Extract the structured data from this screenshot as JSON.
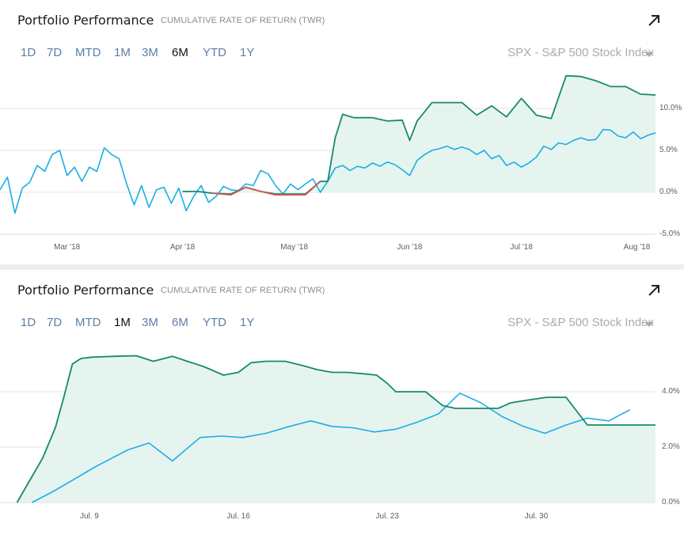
{
  "colors": {
    "portfolio": "#168a6c",
    "portfolio_fill": "#e6f4ef",
    "benchmark": "#1aaee8",
    "negative": "#d9534f",
    "link": "#5b7fa6",
    "muted": "#a7abb0"
  },
  "icons": {
    "expand": "arrow-up-right-icon",
    "dropdown": "caret-down-icon"
  },
  "panels": [
    {
      "title": "Portfolio Performance",
      "subtitle": "CUMULATIVE RATE OF RETURN (TWR)",
      "ranges": [
        "1D",
        "7D",
        "MTD",
        "1M",
        "3M",
        "6M",
        "YTD",
        "1Y"
      ],
      "active_range": "6M",
      "benchmark_label": "SPX - S&P 500 Stock Index"
    },
    {
      "title": "Portfolio Performance",
      "subtitle": "CUMULATIVE RATE OF RETURN (TWR)",
      "ranges": [
        "1D",
        "7D",
        "MTD",
        "1M",
        "3M",
        "6M",
        "YTD",
        "1Y"
      ],
      "active_range": "1M",
      "benchmark_label": "SPX - S&P 500 Stock Index"
    }
  ],
  "chart_data": [
    {
      "type": "area",
      "x_ticks": [
        {
          "label": "Mar '18",
          "t": 18
        },
        {
          "label": "Apr '18",
          "t": 49
        },
        {
          "label": "May '18",
          "t": 79
        },
        {
          "label": "Jun '18",
          "t": 110
        },
        {
          "label": "Jul '18",
          "t": 140
        },
        {
          "label": "Aug '18",
          "t": 171
        }
      ],
      "xlim": [
        0,
        176
      ],
      "y_ticks": [
        "10.0%",
        "5.0%",
        "0.0%",
        "-5.0%"
      ],
      "y_tick_values": [
        10,
        5,
        0,
        -5
      ],
      "ylim": [
        -5,
        14
      ],
      "grid": true,
      "series": [
        {
          "role": "portfolio",
          "x": [
            49,
            53,
            57,
            62,
            66,
            70,
            74,
            78,
            82,
            86,
            88,
            90,
            92,
            95,
            100,
            104,
            108,
            110,
            112,
            116,
            120,
            124,
            128,
            132,
            136,
            140,
            144,
            148,
            152,
            156,
            160,
            164,
            168,
            172,
            176
          ],
          "values": [
            0.1,
            0.1,
            -0.1,
            -0.2,
            0.6,
            0.1,
            -0.2,
            -0.2,
            -0.2,
            1.3,
            1.3,
            6.5,
            9.3,
            8.9,
            8.9,
            8.5,
            8.6,
            6.2,
            8.5,
            10.7,
            10.7,
            10.7,
            9.2,
            10.3,
            9.0,
            11.2,
            9.2,
            8.8,
            13.9,
            13.8,
            13.3,
            12.6,
            12.6,
            11.7,
            11.6
          ]
        },
        {
          "role": "negative",
          "x": [
            57,
            62,
            66,
            70,
            74,
            78,
            82,
            86
          ],
          "values": [
            -0.1,
            -0.3,
            0.6,
            0.1,
            -0.3,
            -0.3,
            -0.3,
            1.3
          ]
        },
        {
          "role": "benchmark",
          "x": [
            0,
            2,
            4,
            6,
            8,
            10,
            12,
            14,
            16,
            18,
            20,
            22,
            24,
            26,
            28,
            30,
            32,
            34,
            36,
            38,
            40,
            42,
            44,
            46,
            48,
            50,
            52,
            54,
            56,
            58,
            60,
            62,
            64,
            66,
            68,
            70,
            72,
            74,
            76,
            78,
            80,
            82,
            84,
            86,
            88,
            90,
            92,
            94,
            96,
            98,
            100,
            102,
            104,
            106,
            108,
            110,
            112,
            114,
            116,
            118,
            120,
            122,
            124,
            126,
            128,
            130,
            132,
            134,
            136,
            138,
            140,
            142,
            144,
            146,
            148,
            150,
            152,
            154,
            156,
            158,
            160,
            162,
            164,
            166,
            168,
            170,
            172,
            174,
            176
          ],
          "values": [
            0.3,
            1.8,
            -2.5,
            0.5,
            1.2,
            3.2,
            2.5,
            4.5,
            5.0,
            2.0,
            3.0,
            1.3,
            3.0,
            2.5,
            5.3,
            4.5,
            4.0,
            1.0,
            -1.5,
            0.8,
            -1.8,
            0.3,
            0.6,
            -1.3,
            0.5,
            -2.2,
            -0.5,
            0.8,
            -1.2,
            -0.5,
            0.7,
            0.3,
            0.2,
            1.0,
            0.8,
            2.6,
            2.2,
            0.8,
            -0.2,
            1.0,
            0.3,
            1.0,
            1.6,
            0.0,
            1.3,
            2.9,
            3.2,
            2.6,
            3.1,
            2.9,
            3.5,
            3.1,
            3.6,
            3.3,
            2.7,
            2.0,
            3.8,
            4.5,
            5.0,
            5.2,
            5.5,
            5.1,
            5.4,
            5.1,
            4.5,
            5.0,
            4.0,
            4.4,
            3.2,
            3.6,
            3.0,
            3.5,
            4.2,
            5.5,
            5.1,
            5.9,
            5.7,
            6.2,
            6.5,
            6.2,
            6.3,
            7.5,
            7.4,
            6.7,
            6.5,
            7.2,
            6.4,
            6.8,
            7.1
          ]
        }
      ]
    },
    {
      "type": "area",
      "x_ticks": [
        {
          "label": "Jul. 9",
          "t": 9
        },
        {
          "label": "Jul. 16",
          "t": 16
        },
        {
          "label": "Jul. 23",
          "t": 23
        },
        {
          "label": "Jul. 30",
          "t": 30
        }
      ],
      "xlim": [
        4.8,
        35.6
      ],
      "y_ticks": [
        "4.0%",
        "2.0%",
        "0.0%"
      ],
      "y_tick_values": [
        4,
        2,
        0
      ],
      "ylim": [
        0,
        5.5
      ],
      "grid": true,
      "series": [
        {
          "role": "portfolio",
          "x": [
            5.6,
            6.2,
            6.8,
            7.4,
            7.8,
            8.2,
            8.6,
            9.1,
            10.2,
            11.2,
            12.0,
            12.9,
            13.6,
            14.4,
            15.3,
            16.0,
            16.6,
            17.3,
            18.2,
            19.0,
            19.7,
            20.4,
            21.1,
            21.9,
            22.5,
            23.0,
            23.4,
            24.0,
            24.8,
            25.6,
            26.2,
            27.0,
            28.2,
            28.8,
            29.6,
            30.5,
            31.4,
            31.8,
            32.4,
            33.0,
            34.0,
            35.0,
            35.6
          ],
          "values": [
            0,
            0.8,
            1.6,
            2.7,
            3.8,
            5.0,
            5.2,
            5.25,
            5.28,
            5.3,
            5.1,
            5.28,
            5.1,
            4.9,
            4.6,
            4.7,
            5.05,
            5.1,
            5.1,
            4.95,
            4.8,
            4.7,
            4.7,
            4.65,
            4.6,
            4.3,
            4.0,
            4.0,
            4.0,
            3.5,
            3.4,
            3.4,
            3.4,
            3.6,
            3.7,
            3.8,
            3.8,
            3.4,
            2.8,
            2.8,
            2.8,
            2.8,
            2.8
          ]
        },
        {
          "role": "benchmark",
          "x": [
            6.3,
            7.3,
            8.3,
            9.3,
            10.8,
            11.8,
            12.9,
            14.2,
            15.2,
            16.2,
            17.3,
            18.4,
            19.4,
            20.4,
            21.4,
            22.4,
            23.4,
            24.4,
            25.4,
            26.4,
            27.4,
            28.4,
            29.4,
            30.4,
            31.4,
            32.4,
            33.4,
            34.4
          ],
          "values": [
            0,
            0.4,
            0.85,
            1.3,
            1.9,
            2.15,
            1.5,
            2.35,
            2.4,
            2.35,
            2.5,
            2.75,
            2.95,
            2.75,
            2.7,
            2.55,
            2.65,
            2.9,
            3.2,
            3.95,
            3.6,
            3.1,
            2.75,
            2.5,
            2.8,
            3.05,
            2.95,
            3.35
          ]
        }
      ]
    }
  ]
}
